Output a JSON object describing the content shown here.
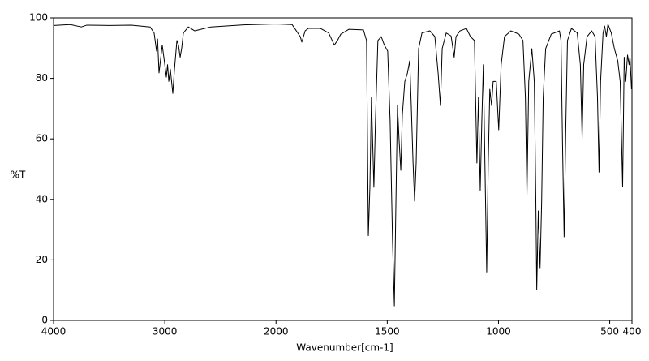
{
  "chart_data": {
    "type": "line",
    "xlabel": "Wavenumber[cm-1]",
    "ylabel": "%T",
    "xlim": [
      4000,
      400
    ],
    "xticks": [
      4000,
      3000,
      2000,
      1500,
      1000,
      500,
      400
    ],
    "ylim": [
      0,
      100
    ],
    "yticks": [
      0,
      20,
      40,
      60,
      80,
      100
    ],
    "grid": false,
    "series": [
      {
        "name": "%T",
        "color": "#000000",
        "x": [
          4000,
          3850,
          3750,
          3700,
          3500,
          3300,
          3132,
          3096,
          3074,
          3065,
          3052,
          3023,
          3005,
          2986,
          2975,
          2964,
          2950,
          2928,
          2913,
          2891,
          2877,
          2862,
          2848,
          2833,
          2789,
          2731,
          2585,
          2293,
          2002,
          1928,
          1891,
          1884,
          1869,
          1855,
          1800,
          1763,
          1738,
          1724,
          1709,
          1673,
          1607,
          1593,
          1585,
          1578,
          1571,
          1563,
          1560,
          1553,
          1542,
          1527,
          1513,
          1498,
          1487,
          1476,
          1468,
          1461,
          1454,
          1447,
          1439,
          1432,
          1421,
          1410,
          1399,
          1392,
          1384,
          1377,
          1370,
          1359,
          1344,
          1308,
          1286,
          1271,
          1261,
          1253,
          1235,
          1213,
          1199,
          1191,
          1173,
          1144,
          1126,
          1108,
          1097,
          1090,
          1082,
          1075,
          1068,
          1061,
          1053,
          1046,
          1039,
          1031,
          1024,
          1010,
          999,
          988,
          973,
          944,
          908,
          890,
          879,
          872,
          864,
          850,
          839,
          832,
          828,
          821,
          813,
          806,
          799,
          788,
          763,
          726,
          719,
          712,
          705,
          697,
          690,
          672,
          646,
          632,
          624,
          617,
          602,
          581,
          566,
          555,
          548,
          541,
          530,
          523,
          515,
          508,
          493,
          479,
          464,
          453,
          442,
          435,
          428,
          420,
          413,
          409,
          402
        ],
        "values": [
          97.5,
          97.8,
          97.0,
          97.6,
          97.5,
          97.6,
          97.0,
          95.0,
          89.0,
          93.0,
          81.8,
          91.0,
          86.0,
          80.4,
          84.5,
          79.0,
          83.0,
          75.0,
          83.0,
          92.5,
          91.0,
          87.0,
          90.0,
          95.0,
          97.0,
          95.7,
          97.0,
          97.7,
          98.0,
          97.8,
          93.8,
          92.0,
          95.7,
          96.5,
          96.5,
          95.0,
          91.0,
          92.5,
          94.6,
          96.2,
          96.0,
          92.5,
          28.0,
          44.0,
          73.7,
          52.0,
          44.0,
          65.7,
          92.5,
          93.8,
          91.0,
          89.0,
          65.7,
          25.5,
          4.8,
          39.0,
          71.0,
          60.0,
          49.6,
          68.0,
          79.0,
          81.5,
          85.8,
          71.0,
          52.0,
          39.4,
          52.0,
          89.8,
          95.0,
          95.7,
          93.8,
          81.5,
          71.0,
          89.8,
          95.0,
          94.0,
          87.0,
          93.8,
          95.7,
          96.5,
          93.8,
          92.5,
          52.0,
          73.7,
          43.0,
          65.7,
          84.5,
          52.0,
          16.0,
          52.0,
          76.4,
          71.0,
          79.0,
          79.0,
          63.0,
          84.5,
          93.8,
          95.7,
          94.6,
          92.5,
          73.7,
          41.6,
          79.0,
          89.8,
          79.0,
          38.9,
          10.2,
          36.2,
          17.4,
          38.9,
          73.7,
          89.8,
          94.6,
          95.7,
          92.5,
          57.6,
          27.6,
          65.7,
          92.5,
          96.5,
          95.0,
          84.5,
          60.3,
          84.5,
          93.8,
          95.7,
          93.8,
          73.7,
          49.0,
          79.0,
          95.0,
          97.3,
          93.8,
          97.9,
          95.0,
          89.8,
          85.8,
          79.0,
          44.2,
          87.0,
          79.0,
          87.7,
          84.5,
          87.0,
          76.4
        ]
      }
    ]
  }
}
